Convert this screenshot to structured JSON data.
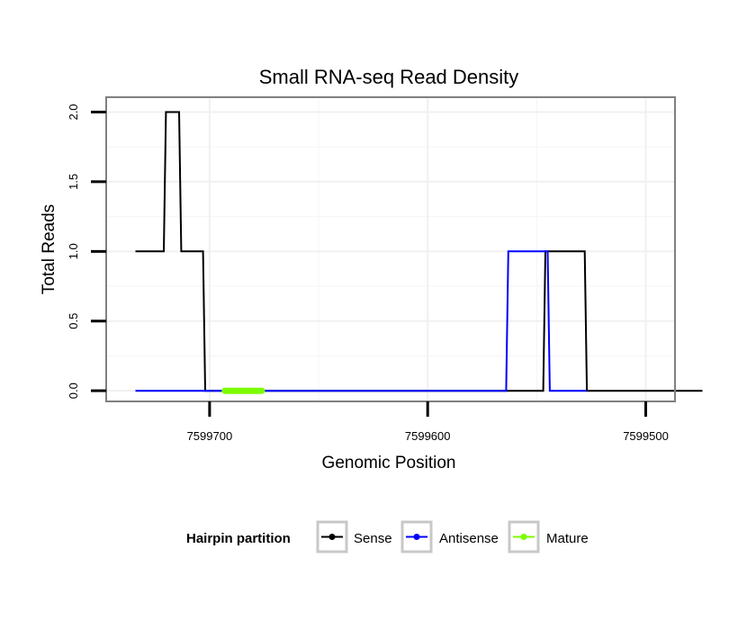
{
  "chart_data": {
    "type": "line",
    "title": "Small RNA-seq Read Density",
    "xlabel": "Genomic Position",
    "ylabel": "Total Reads",
    "xlim": [
      7599747,
      7599487
    ],
    "ylim": [
      -0.07,
      2.1
    ],
    "x_reversed": true,
    "x_ticks": [
      7599700,
      7599600,
      7599500
    ],
    "x_tick_labels": [
      "7599700",
      "7599600",
      "7599500"
    ],
    "y_ticks": [
      0.0,
      0.5,
      1.0,
      1.5,
      2.0
    ],
    "y_tick_labels": [
      "0.0",
      "0.5",
      "1.0",
      "1.5",
      "2.0"
    ],
    "grid": true,
    "legend": {
      "title": "Hairpin partition",
      "position": "bottom",
      "entries": [
        "Sense",
        "Antisense",
        "Mature"
      ]
    },
    "series": [
      {
        "name": "Sense",
        "color": "#000000",
        "points": [
          [
            7599734,
            1
          ],
          [
            7599721,
            1
          ],
          [
            7599720,
            2
          ],
          [
            7599714,
            2
          ],
          [
            7599713,
            1
          ],
          [
            7599703,
            1
          ],
          [
            7599702,
            0
          ],
          [
            7599547,
            0
          ],
          [
            7599546,
            1
          ],
          [
            7599528,
            1
          ],
          [
            7599527,
            0
          ],
          [
            7599474,
            0
          ]
        ]
      },
      {
        "name": "Antisense",
        "color": "#0000ff",
        "points": [
          [
            7599734,
            0
          ],
          [
            7599703,
            0
          ],
          [
            7599564,
            0
          ],
          [
            7599563,
            1
          ],
          [
            7599545,
            1
          ],
          [
            7599544,
            0
          ],
          [
            7599527,
            0
          ]
        ]
      },
      {
        "name": "Mature",
        "color": "#7cfc00",
        "points": [
          [
            7599693,
            0
          ],
          [
            7599676,
            0
          ]
        ]
      }
    ]
  }
}
